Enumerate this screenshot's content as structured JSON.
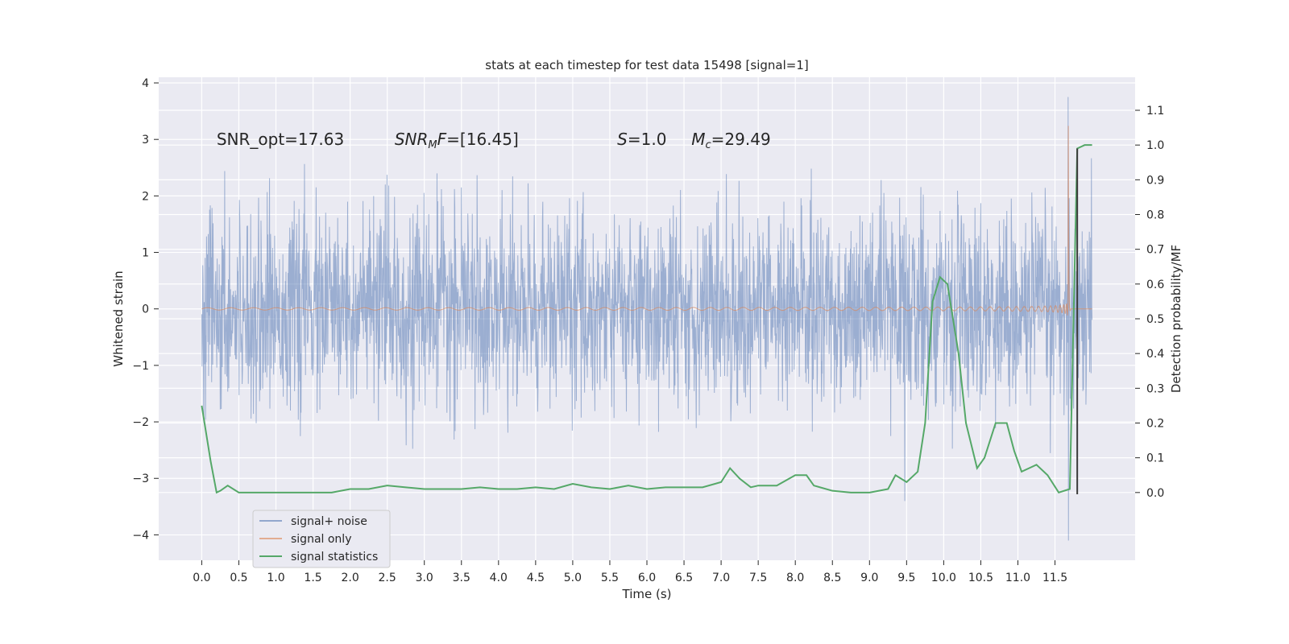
{
  "chart_data": {
    "type": "line",
    "title": "stats at each timestep for test data 15498 [signal=1]",
    "xlabel": "Time (s)",
    "ylabel_left": "Whitened strain",
    "ylabel_right": "Detection probability/MF",
    "xlim": [
      -0.58,
      12.58
    ],
    "ylim_left": [
      -4.45,
      4.1
    ],
    "ylim_right": [
      -0.195,
      1.195
    ],
    "x_ticks": [
      "0.0",
      "0.5",
      "1.0",
      "1.5",
      "2.0",
      "2.5",
      "3.0",
      "3.5",
      "4.0",
      "4.5",
      "5.0",
      "5.5",
      "6.0",
      "6.5",
      "7.0",
      "7.5",
      "8.0",
      "8.5",
      "9.0",
      "9.5",
      "10.0",
      "10.5",
      "11.0",
      "11.5"
    ],
    "y_ticks_left": [
      "−4",
      "−3",
      "−2",
      "−1",
      "0",
      "1",
      "2",
      "3",
      "4"
    ],
    "y_ticks_right": [
      "0.0",
      "0.1",
      "0.2",
      "0.3",
      "0.4",
      "0.5",
      "0.6",
      "0.7",
      "0.8",
      "0.9",
      "1.0",
      "1.1"
    ],
    "grid": true,
    "legend_placement": "lower-left",
    "colors": {
      "noise": "#4c72b0",
      "signal": "#dd8452",
      "stats": "#55a868",
      "marker": "#3a3a3a",
      "background": "#eaeaf2",
      "grid": "#ffffff"
    },
    "annotations": [
      {
        "text": "SNR_opt=17.63",
        "x": 0.2,
        "y": 2.9
      },
      {
        "text": "SNR_MF=[16.45]",
        "x": 2.6,
        "y": 2.9
      },
      {
        "text": "S=1.0",
        "x": 5.6,
        "y": 2.9
      },
      {
        "text": "M_c=29.49",
        "x": 6.6,
        "y": 2.9
      }
    ],
    "marker_line": {
      "x": 11.8,
      "y_right": [
        -0.005,
        0.99
      ]
    },
    "series": [
      {
        "name": "signal+ noise",
        "axis": "left",
        "t_start": 0.0,
        "t_end": 12.0,
        "amplitude": 1.0,
        "peak": {
          "t": 11.68,
          "max": 3.75,
          "min": -4.1
        }
      },
      {
        "name": "signal only",
        "axis": "left",
        "merger_time": 11.68,
        "peak_amplitude": 3.4
      },
      {
        "name": "signal statistics",
        "axis": "right",
        "x": [
          0.0,
          0.12,
          0.2,
          0.25,
          0.35,
          0.5,
          0.75,
          1.0,
          1.25,
          1.5,
          1.75,
          2.0,
          2.25,
          2.5,
          2.75,
          3.0,
          3.25,
          3.5,
          3.75,
          4.0,
          4.25,
          4.5,
          4.75,
          5.0,
          5.25,
          5.5,
          5.75,
          6.0,
          6.25,
          6.5,
          6.75,
          7.0,
          7.12,
          7.25,
          7.4,
          7.5,
          7.75,
          8.0,
          8.15,
          8.25,
          8.5,
          8.75,
          9.0,
          9.25,
          9.35,
          9.5,
          9.65,
          9.75,
          9.85,
          9.95,
          10.05,
          10.2,
          10.3,
          10.45,
          10.55,
          10.7,
          10.85,
          10.95,
          11.05,
          11.15,
          11.25,
          11.4,
          11.55,
          11.7,
          11.8,
          11.9,
          12.0
        ],
        "values": [
          0.25,
          0.09,
          0.0,
          0.005,
          0.02,
          0.0,
          0.0,
          0.0,
          0.0,
          0.0,
          0.0,
          0.01,
          0.01,
          0.02,
          0.015,
          0.01,
          0.01,
          0.01,
          0.015,
          0.01,
          0.01,
          0.015,
          0.01,
          0.025,
          0.015,
          0.01,
          0.02,
          0.01,
          0.015,
          0.015,
          0.015,
          0.03,
          0.07,
          0.04,
          0.015,
          0.02,
          0.02,
          0.05,
          0.05,
          0.02,
          0.005,
          0.0,
          0.0,
          0.01,
          0.05,
          0.03,
          0.06,
          0.2,
          0.55,
          0.62,
          0.6,
          0.4,
          0.2,
          0.07,
          0.1,
          0.2,
          0.2,
          0.12,
          0.06,
          0.07,
          0.08,
          0.05,
          0.0,
          0.01,
          0.99,
          1.0,
          1.0
        ]
      }
    ]
  }
}
